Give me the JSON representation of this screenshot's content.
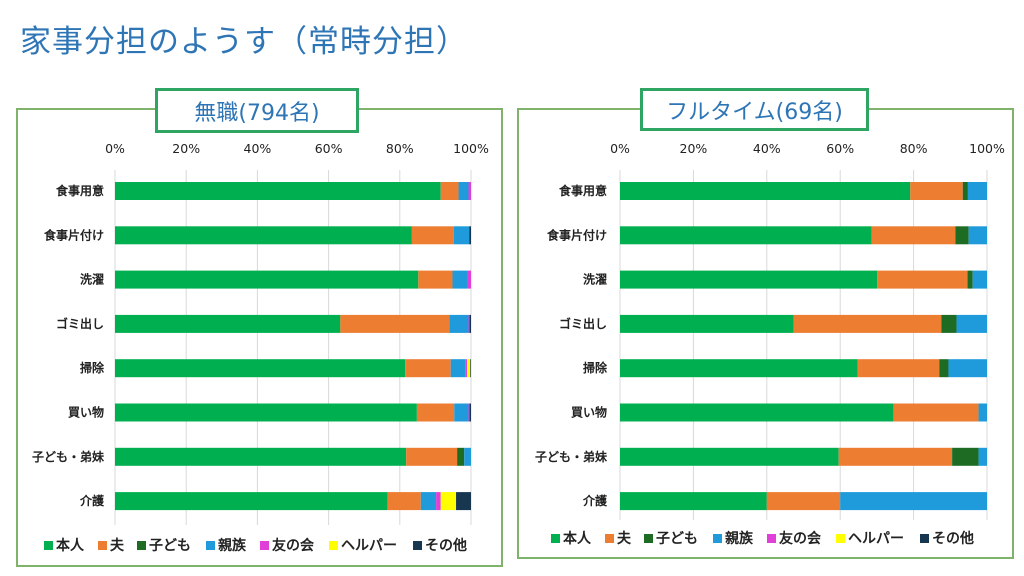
{
  "page": {
    "title": "家事分担のようす（常時分担）"
  },
  "colors": {
    "title": "#2E75B6",
    "panel_border": "#7FB36B",
    "title_box_border": "#2EA563"
  },
  "chart_data": [
    {
      "type": "bar",
      "orientation": "horizontal",
      "stacked": "percent",
      "title": "無職(794名)",
      "xlabel": "",
      "ylabel": "",
      "xlim": [
        0,
        100
      ],
      "x_ticks": [
        "0%",
        "20%",
        "40%",
        "60%",
        "80%",
        "100%"
      ],
      "grid": true,
      "legend_position": "bottom",
      "categories": [
        "食事用意",
        "食事片付け",
        "洗濯",
        "ゴミ出し",
        "掃除",
        "買い物",
        "子ども・弟妹",
        "介護"
      ],
      "series": [
        {
          "name": "本人",
          "color": "#00B050",
          "values": [
            91.5,
            83.4,
            85.2,
            63.3,
            81.5,
            84.8,
            81.8,
            76.6
          ]
        },
        {
          "name": "夫",
          "color": "#ED7D31",
          "values": [
            5.0,
            11.8,
            9.6,
            30.6,
            12.8,
            10.5,
            14.3,
            9.3
          ]
        },
        {
          "name": "子ども",
          "color": "#1E6B24",
          "values": [
            0.0,
            0.0,
            0.0,
            0.0,
            0.0,
            0.0,
            2.0,
            0.0
          ]
        },
        {
          "name": "親族",
          "color": "#1F9BDB",
          "values": [
            2.8,
            4.3,
            4.2,
            5.4,
            4.1,
            4.0,
            1.9,
            4.3
          ]
        },
        {
          "name": "友の会",
          "color": "#E040D8",
          "values": [
            0.7,
            0.0,
            1.0,
            0.3,
            0.5,
            0.3,
            0.0,
            1.3
          ]
        },
        {
          "name": "ヘルパー",
          "color": "#FFFF00",
          "values": [
            0.0,
            0.0,
            0.0,
            0.0,
            0.9,
            0.0,
            0.0,
            4.3
          ]
        },
        {
          "name": "その他",
          "color": "#17364F",
          "values": [
            0.0,
            0.5,
            0.0,
            0.4,
            0.2,
            0.4,
            0.0,
            4.2
          ]
        }
      ]
    },
    {
      "type": "bar",
      "orientation": "horizontal",
      "stacked": "percent",
      "title": "フルタイム(69名)",
      "xlabel": "",
      "ylabel": "",
      "xlim": [
        0,
        100
      ],
      "x_ticks": [
        "0%",
        "20%",
        "40%",
        "60%",
        "80%",
        "100%"
      ],
      "grid": true,
      "legend_position": "bottom",
      "categories": [
        "食事用意",
        "食事片付け",
        "洗濯",
        "ゴミ出し",
        "掃除",
        "買い物",
        "子ども・弟妹",
        "介護"
      ],
      "series": [
        {
          "name": "本人",
          "color": "#00B050",
          "values": [
            79.1,
            68.6,
            70.1,
            47.3,
            64.7,
            74.5,
            59.6,
            40.0
          ]
        },
        {
          "name": "夫",
          "color": "#ED7D31",
          "values": [
            14.3,
            22.8,
            24.6,
            40.3,
            22.3,
            23.2,
            30.9,
            20.0
          ]
        },
        {
          "name": "子ども",
          "color": "#1E6B24",
          "values": [
            1.4,
            3.6,
            1.4,
            4.1,
            2.5,
            0.0,
            7.2,
            0.0
          ]
        },
        {
          "name": "親族",
          "color": "#1F9BDB",
          "values": [
            5.2,
            5.0,
            3.9,
            8.3,
            10.5,
            2.3,
            2.3,
            40.0
          ]
        },
        {
          "name": "友の会",
          "color": "#E040D8",
          "values": [
            0,
            0,
            0,
            0,
            0,
            0,
            0,
            0
          ]
        },
        {
          "name": "ヘルパー",
          "color": "#FFFF00",
          "values": [
            0,
            0,
            0,
            0,
            0,
            0,
            0,
            0
          ]
        },
        {
          "name": "その他",
          "color": "#17364F",
          "values": [
            0,
            0,
            0,
            0,
            0,
            0,
            0,
            0
          ]
        }
      ]
    }
  ]
}
